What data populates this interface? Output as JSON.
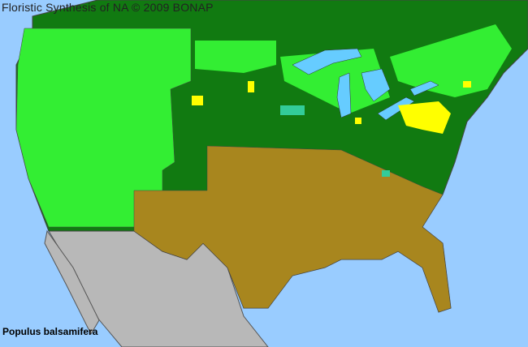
{
  "header": {
    "title": "Floristic Synthesis of NA © 2009 BONAP"
  },
  "species": {
    "name": "Populus balsamifera"
  },
  "colors": {
    "ocean": "#99ccff",
    "dark_green": "#117a11",
    "bright_green": "#33ee33",
    "brown": "#a8861e",
    "gray": "#b8b8b8",
    "yellow": "#ffff00",
    "teal": "#33cc99",
    "lakes": "#66ccff"
  }
}
